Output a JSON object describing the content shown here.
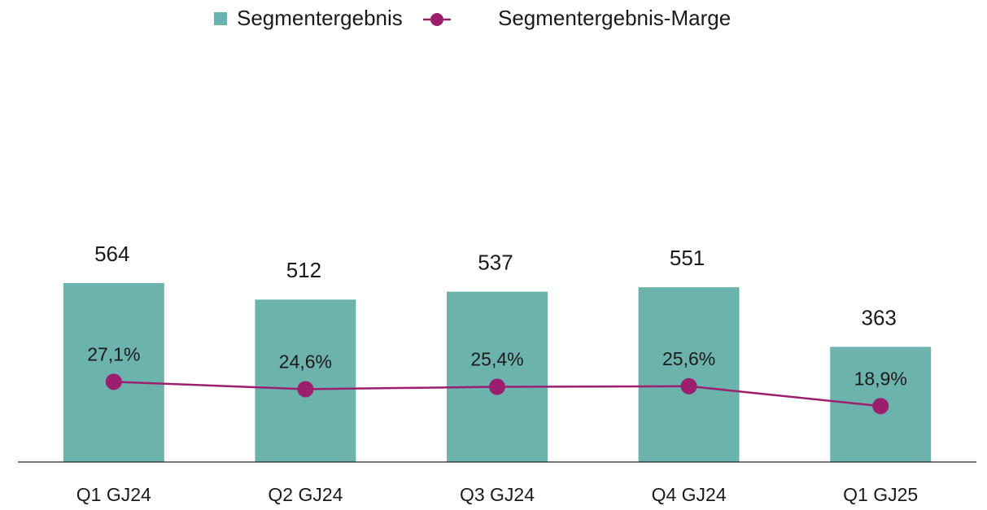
{
  "chart_data": {
    "type": "bar+line",
    "categories": [
      "Q1 GJ24",
      "Q2 GJ24",
      "Q3 GJ24",
      "Q4 GJ24",
      "Q1 GJ25"
    ],
    "series": [
      {
        "name": "Segmentergebnis",
        "type": "bar",
        "color": "#6db3ad",
        "values": [
          564,
          512,
          537,
          551,
          363
        ]
      },
      {
        "name": "Segmentergebnis-Marge",
        "type": "line",
        "axis": "y2",
        "color": "#9b1f6e",
        "values": [
          27.1,
          24.6,
          25.4,
          25.6,
          18.9
        ],
        "value_labels": [
          "27,1%",
          "24,6%",
          "25,4%",
          "25,6%",
          "18,9%"
        ]
      }
    ],
    "ylim": [
      0,
      1400
    ],
    "y2lim": [
      0,
      150
    ],
    "legend": "top"
  }
}
